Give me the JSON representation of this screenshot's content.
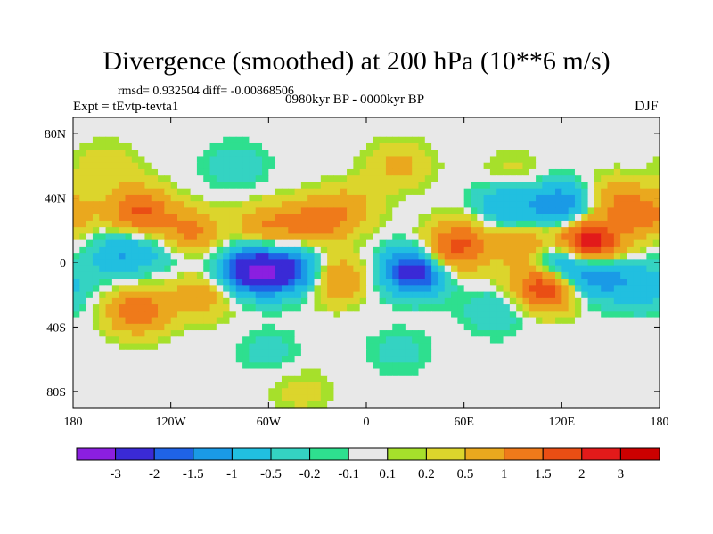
{
  "header": {
    "title": "Divergence (smoothed) at 200 hPa (10**6 m/s)",
    "stats": "rmsd= 0.932504  diff= -0.00868506",
    "experiment": "Expt = tEvtp-tevta1",
    "period": "0980kyr BP - 0000kyr BP",
    "season": "DJF"
  },
  "chart_data": {
    "type": "heatmap",
    "title": "Divergence (smoothed) at 200 hPa (10**6 m/s)",
    "subtitle": "0980kyr BP - 0000kyr BP",
    "xlabel": "",
    "ylabel": "",
    "x_ticks": [
      "180",
      "120W",
      "60W",
      "0",
      "60E",
      "120E",
      "180"
    ],
    "x_tick_values": [
      -180,
      -120,
      -60,
      0,
      60,
      120,
      180
    ],
    "y_ticks": [
      "80N",
      "40N",
      "0",
      "40S",
      "80S"
    ],
    "y_tick_values": [
      80,
      40,
      0,
      -40,
      -80
    ],
    "xlim": [
      -180,
      180
    ],
    "ylim": [
      -90,
      90
    ],
    "grid": false,
    "colorbar": {
      "placement": "bottom",
      "labels": [
        "-3",
        "-2",
        "-1.5",
        "-1",
        "-0.5",
        "-0.2",
        "-0.1",
        "0.1",
        "0.2",
        "0.5",
        "1",
        "1.5",
        "2",
        "3"
      ],
      "colors": [
        "#8b1fe0",
        "#3a2ad6",
        "#1f63e6",
        "#1a9ae6",
        "#21bfe0",
        "#34d3c2",
        "#2edf8f",
        "#e8e8e8",
        "#a6e02b",
        "#dcd52c",
        "#eaa81e",
        "#ef7a1a",
        "#ea4e14",
        "#e21a1a",
        "#cc0000"
      ]
    },
    "features": [
      {
        "lon": -140,
        "lat": 32,
        "value": 1.6
      },
      {
        "lon": -110,
        "lat": 18,
        "value": 1.4
      },
      {
        "lon": -60,
        "lat": 22,
        "value": 1.0
      },
      {
        "lon": -30,
        "lat": 25,
        "value": 1.2
      },
      {
        "lon": -10,
        "lat": 35,
        "value": 0.6
      },
      {
        "lon": -150,
        "lat": 5,
        "value": -1.0
      },
      {
        "lon": -120,
        "lat": 10,
        "value": -0.6
      },
      {
        "lon": -70,
        "lat": -5,
        "value": -2.8
      },
      {
        "lon": -45,
        "lat": -5,
        "value": -2.0
      },
      {
        "lon": -140,
        "lat": -30,
        "value": 1.4
      },
      {
        "lon": -100,
        "lat": -20,
        "value": 0.8
      },
      {
        "lon": -20,
        "lat": -10,
        "value": 1.2
      },
      {
        "lon": 30,
        "lat": -5,
        "value": -2.6
      },
      {
        "lon": 50,
        "lat": 5,
        "value": 1.3
      },
      {
        "lon": 60,
        "lat": 15,
        "value": 0.9
      },
      {
        "lon": 100,
        "lat": 10,
        "value": 1.2
      },
      {
        "lon": 135,
        "lat": 12,
        "value": 3.0
      },
      {
        "lon": 118,
        "lat": 2,
        "value": -2.0
      },
      {
        "lon": 110,
        "lat": -15,
        "value": 2.2
      },
      {
        "lon": 140,
        "lat": -8,
        "value": -1.4
      },
      {
        "lon": 170,
        "lat": -15,
        "value": -0.8
      },
      {
        "lon": 80,
        "lat": -30,
        "value": -0.5
      },
      {
        "lon": 120,
        "lat": 35,
        "value": -1.6
      },
      {
        "lon": 85,
        "lat": 35,
        "value": -1.0
      },
      {
        "lon": 150,
        "lat": 40,
        "value": 0.7
      },
      {
        "lon": 170,
        "lat": 30,
        "value": 1.2
      },
      {
        "lon": -80,
        "lat": 60,
        "value": -0.4
      },
      {
        "lon": 20,
        "lat": 60,
        "value": 0.6
      },
      {
        "lon": 90,
        "lat": 55,
        "value": 0.3
      },
      {
        "lon": -160,
        "lat": 60,
        "value": 0.4
      },
      {
        "lon": -60,
        "lat": -55,
        "value": -0.3
      },
      {
        "lon": 20,
        "lat": -55,
        "value": -0.3
      },
      {
        "lon": -40,
        "lat": -80,
        "value": 0.3
      }
    ]
  }
}
